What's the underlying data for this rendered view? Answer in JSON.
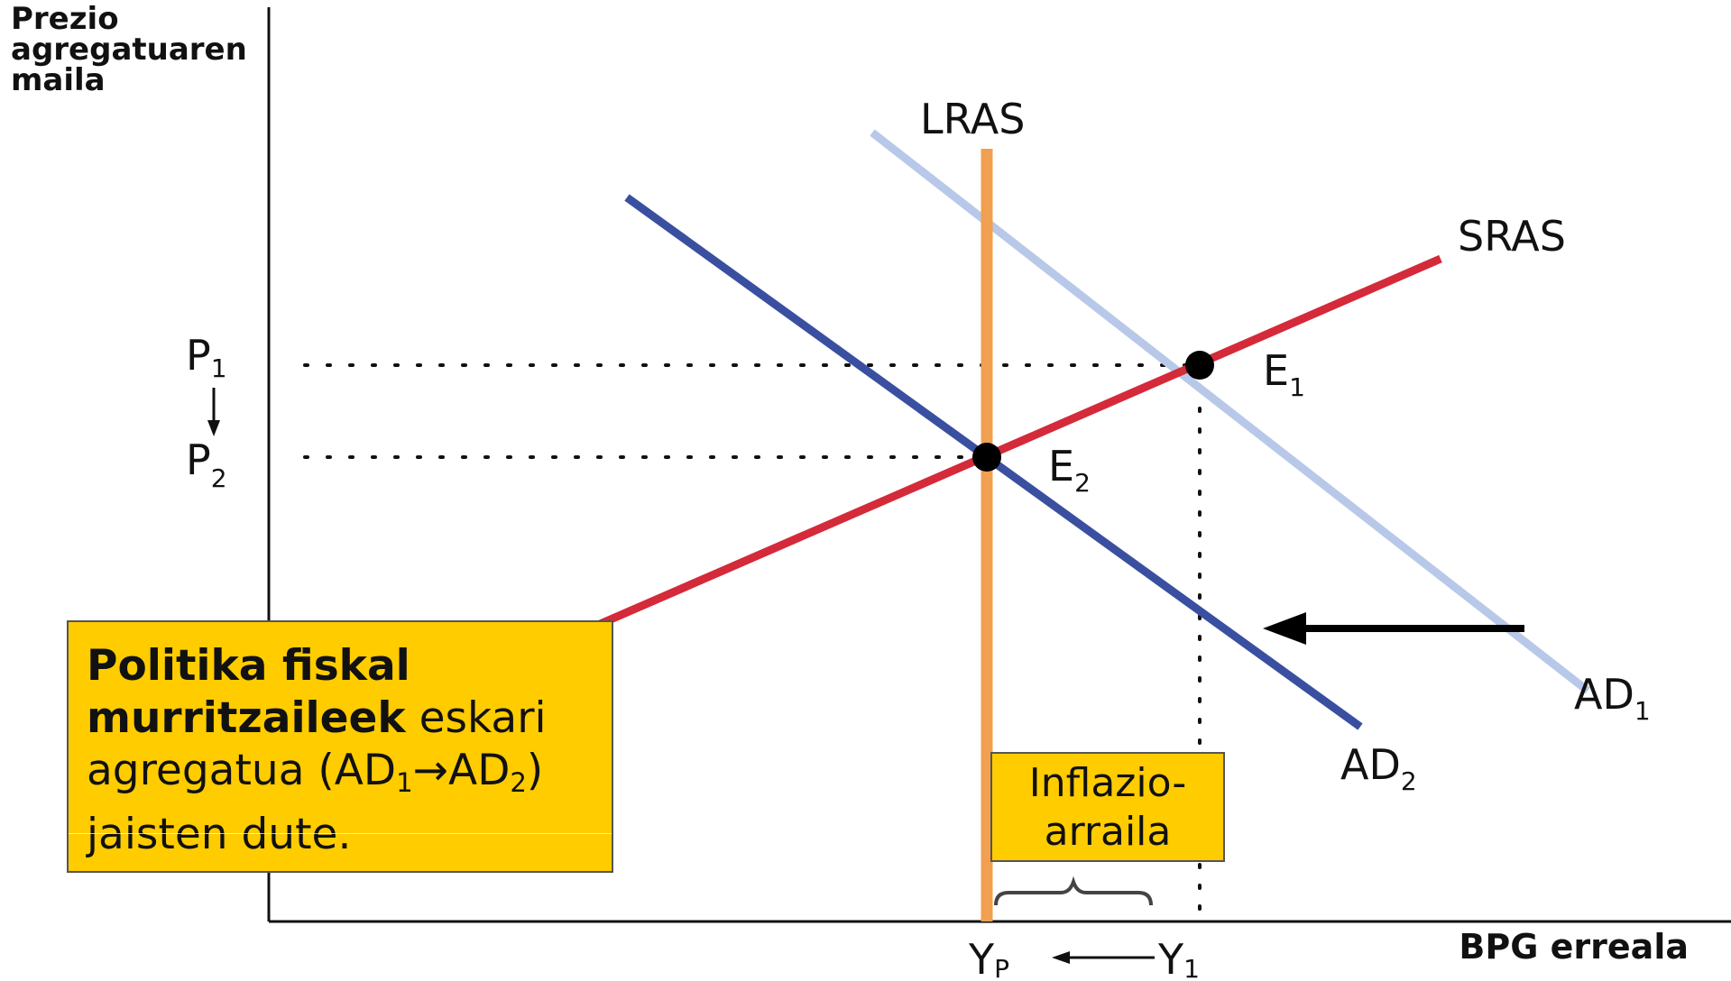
{
  "axes": {
    "y_label_lines": [
      "Prezio",
      "agregatuaren",
      "maila"
    ],
    "x_label": "BPG erreala"
  },
  "curves": {
    "lras": {
      "label": "LRAS",
      "color": "#f0a050"
    },
    "sras": {
      "label": "SRAS",
      "color": "#d42a3a"
    },
    "ad1": {
      "label_main": "AD",
      "label_sub": "1",
      "color": "#b8c8e8"
    },
    "ad2": {
      "label_main": "AD",
      "label_sub": "2",
      "color": "#3a4fa0"
    }
  },
  "points": {
    "e1": {
      "label_main": "E",
      "label_sub": "1"
    },
    "e2": {
      "label_main": "E",
      "label_sub": "2"
    }
  },
  "price_levels": {
    "p1": {
      "main": "P",
      "sub": "1"
    },
    "p2": {
      "main": "P",
      "sub": "2"
    }
  },
  "output_levels": {
    "yp": {
      "main": "Y",
      "sub": "P"
    },
    "y1": {
      "main": "Y",
      "sub": "1"
    }
  },
  "policy_box": {
    "bold_line1": "Politika fiskal",
    "bold_line2": "murritzaileek",
    "text_after_bold": " eskari",
    "text_line3_start": "agregatua (AD",
    "sub1": "1",
    "arrow": "→",
    "text_ad2": "AD",
    "sub2": "2",
    "text_line3_end": ")",
    "text_line4": "jaisten dute."
  },
  "gap_box": {
    "line1": "Inflazio-",
    "line2": "arraila"
  },
  "colors": {
    "box_fill": "#ffcc00",
    "arrow": "#000000"
  }
}
